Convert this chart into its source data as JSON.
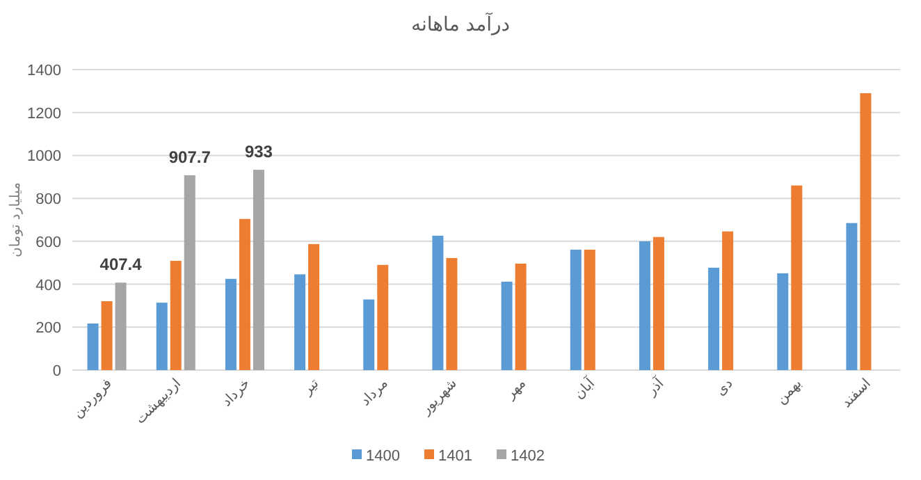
{
  "chart_data": {
    "type": "bar",
    "title": "درآمد ماهانه",
    "ylabel": "میلیارد تومان",
    "categories": [
      "فروردین",
      "اردیبهشت",
      "خرداد",
      "تیر",
      "مرداد",
      "شهریور",
      "مهر",
      "آبان",
      "آذر",
      "دی",
      "بهمن",
      "اسفند"
    ],
    "series": [
      {
        "name": "1400",
        "color": "#5b9bd5",
        "values": [
          217,
          314,
          425,
          446,
          329,
          626,
          412,
          561,
          600,
          477,
          451,
          685
        ]
      },
      {
        "name": "1401",
        "color": "#ed7d31",
        "values": [
          321,
          509,
          704,
          587,
          490,
          522,
          496,
          561,
          620,
          646,
          860,
          1290
        ]
      },
      {
        "name": "1402",
        "color": "#a5a5a5",
        "values": [
          407.4,
          907.7,
          933,
          null,
          null,
          null,
          null,
          null,
          null,
          null,
          null,
          null
        ],
        "value_labels": [
          "407.4",
          "907.7",
          "933",
          null,
          null,
          null,
          null,
          null,
          null,
          null,
          null,
          null
        ]
      }
    ],
    "ylim": [
      0,
      1400
    ],
    "yticks": [
      0,
      200,
      400,
      600,
      800,
      1000,
      1200,
      1400
    ],
    "grid": "y",
    "legend": "bottom"
  }
}
